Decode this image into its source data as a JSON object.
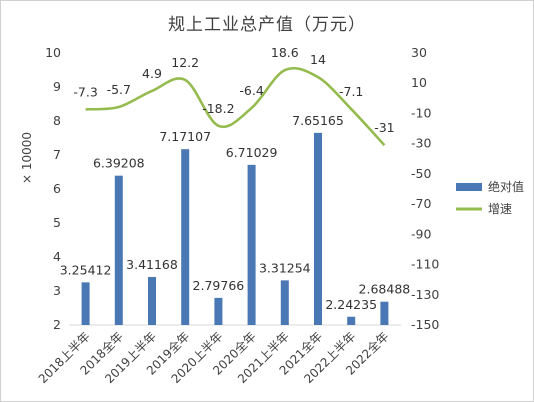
{
  "chart_data": {
    "type": "bar",
    "title": "规上工业总产值（万元）",
    "ylabel": "× 10000",
    "categories": [
      "2018上半年",
      "2018全年",
      "2019上半年",
      "2019全年",
      "2020上半年",
      "2020全年",
      "2021上半年",
      "2021全年",
      "2022上半年",
      "2022全年"
    ],
    "series": [
      {
        "name": "绝对值",
        "type": "bar",
        "axis": "left",
        "color": "#4a78b4",
        "values": [
          3.25412,
          6.39208,
          3.41168,
          7.17107,
          2.79766,
          6.71029,
          3.31254,
          7.65165,
          2.24235,
          2.68488
        ],
        "labels": [
          "3.25412",
          "6.39208",
          "3.41168",
          "7.17107",
          "2.79766",
          "6.71029",
          "3.31254",
          "7.65165",
          "2.24235",
          "2.68488"
        ]
      },
      {
        "name": "增速",
        "type": "line",
        "axis": "right",
        "color": "#94bb4e",
        "values": [
          -7.3,
          -5.7,
          4.9,
          12.2,
          -18.2,
          -6.4,
          18.6,
          14,
          -7.1,
          -31
        ],
        "labels": [
          "-7.3",
          "-5.7",
          "4.9",
          "12.2",
          "-18.2",
          "-6.4",
          "18.6",
          "14",
          "-7.1",
          "-31"
        ]
      }
    ],
    "y_left": {
      "ylim": [
        2,
        10
      ],
      "ticks": [
        "2",
        "3",
        "4",
        "5",
        "6",
        "7",
        "8",
        "9",
        "10"
      ]
    },
    "y_right": {
      "ylim": [
        -150,
        30
      ],
      "ticks": [
        "30",
        "10",
        "-10",
        "-30",
        "-50",
        "-70",
        "-90",
        "-110",
        "-130",
        "-150"
      ]
    },
    "grid": false,
    "legend_position": "right"
  }
}
